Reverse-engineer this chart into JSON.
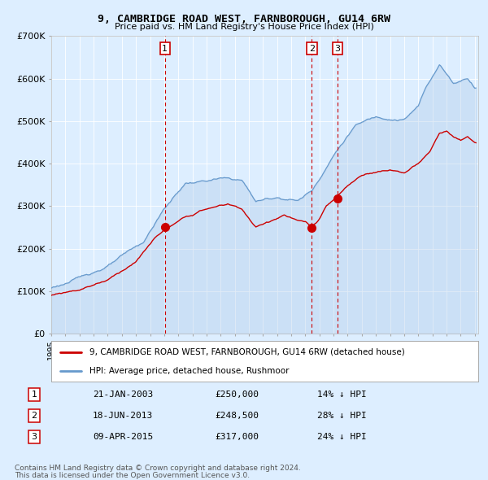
{
  "title": "9, CAMBRIDGE ROAD WEST, FARNBOROUGH, GU14 6RW",
  "subtitle": "Price paid vs. HM Land Registry's House Price Index (HPI)",
  "legend_line1": "9, CAMBRIDGE ROAD WEST, FARNBOROUGH, GU14 6RW (detached house)",
  "legend_line2": "HPI: Average price, detached house, Rushmoor",
  "transactions": [
    {
      "label": "1",
      "date": "21-JAN-2003",
      "price": 250000,
      "pct": "14%",
      "dir": "↓"
    },
    {
      "label": "2",
      "date": "18-JUN-2013",
      "price": 248500,
      "pct": "28%",
      "dir": "↓"
    },
    {
      "label": "3",
      "date": "09-APR-2015",
      "price": 317000,
      "pct": "24%",
      "dir": "↓"
    }
  ],
  "footer1": "Contains HM Land Registry data © Crown copyright and database right 2024.",
  "footer2": "This data is licensed under the Open Government Licence v3.0.",
  "red_color": "#cc0000",
  "blue_color": "#6699cc",
  "blue_fill": "#aac8e8",
  "bg_color": "#ddeeff",
  "plot_bg": "#ddeeff",
  "grid_color": "#ffffff",
  "ylim": [
    0,
    700000
  ],
  "ytick_labels": [
    "£0",
    "£100K",
    "£200K",
    "£300K",
    "£400K",
    "£500K",
    "£600K",
    "£700K"
  ]
}
